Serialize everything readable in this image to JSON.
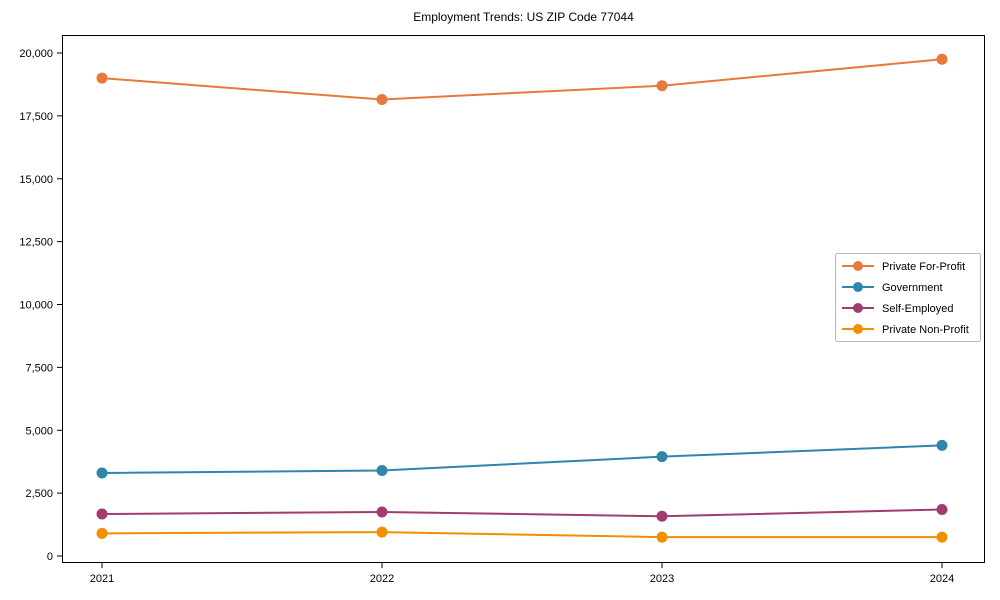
{
  "chart_data": {
    "type": "line",
    "title": "Employment Trends: US ZIP Code 77044",
    "categories": [
      "2021",
      "2022",
      "2023",
      "2024"
    ],
    "series": [
      {
        "name": "Private For-Profit",
        "color": "#E8793D",
        "values": [
          19000,
          18150,
          18700,
          19750
        ]
      },
      {
        "name": "Government",
        "color": "#2E86AB",
        "values": [
          3300,
          3400,
          3950,
          4400
        ]
      },
      {
        "name": "Self-Employed",
        "color": "#A23B72",
        "values": [
          1670,
          1750,
          1580,
          1850
        ]
      },
      {
        "name": "Private Non-Profit",
        "color": "#F18F01",
        "values": [
          900,
          950,
          750,
          750
        ]
      }
    ],
    "xlabel": "",
    "ylabel": "",
    "ylim": [
      0,
      20000
    ],
    "ytick_step": 2500,
    "ytick_labels": [
      "0",
      "2,500",
      "5,000",
      "7,500",
      "10,000",
      "12,500",
      "15,000",
      "17,500",
      "20,000"
    ],
    "grid": false,
    "marker": "circle",
    "legend_position": "right-middle",
    "frame_color": "#000000",
    "legend_border_color": "#b7b7b7",
    "text_color": "#000000"
  }
}
